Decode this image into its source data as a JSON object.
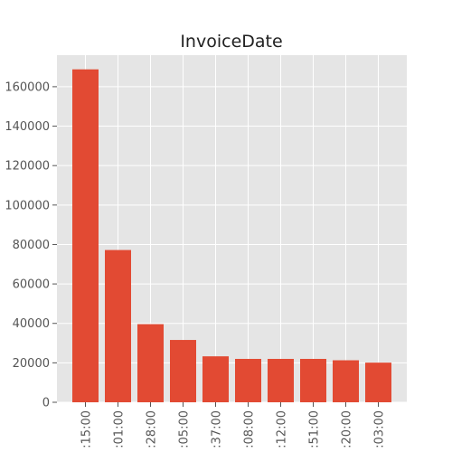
{
  "chart_data": {
    "type": "bar",
    "title": "InvoiceDate",
    "xlabel": "",
    "ylabel": "",
    "categories": [
      ":15:00",
      ":01:00",
      ":28:00",
      ":05:00",
      ":37:00",
      ":08:00",
      ":12:00",
      ":51:00",
      ":20:00",
      ":03:00"
    ],
    "values": [
      168800,
      77200,
      39600,
      31600,
      23300,
      22000,
      22000,
      22000,
      21300,
      20100
    ],
    "ylim": [
      0,
      176000
    ],
    "yticks": [
      0,
      20000,
      40000,
      60000,
      80000,
      100000,
      120000,
      140000,
      160000
    ],
    "grid": true,
    "bar_color": "#E24A33",
    "plot_background": "#E5E5E5",
    "grid_color": "#FFFFFF"
  }
}
